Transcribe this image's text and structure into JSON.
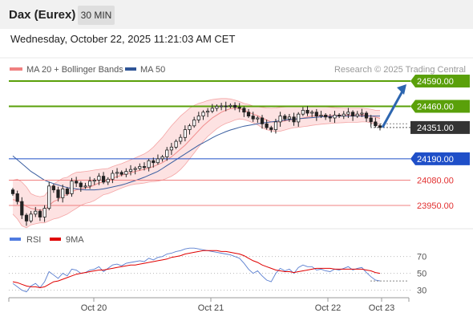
{
  "header": {
    "instrument": "Dax (Eurex)",
    "timeframe": "30 MIN",
    "datetime": "Wednesday, October 22, 2025 11:21:03 AM CET"
  },
  "colors": {
    "bollinger_fill": "#fde2e2",
    "bollinger_line": "#f4a6a6",
    "ma50": "#3b5fa0",
    "green_level": "#5aa00a",
    "blue_level": "#1f4fc8",
    "red_level": "#e23030",
    "last_price": "#333333",
    "rsi_line": "#5b7fd0",
    "rsi_ma": "#e00000",
    "arrow": "#2d66b0"
  },
  "chart_data": [
    {
      "type": "candlestick",
      "legend": [
        {
          "name": "MA 20 + Bollinger Bands",
          "color": "#f08080"
        },
        {
          "name": "MA 50",
          "color": "#2f5597"
        }
      ],
      "credit": "Research © 2025 Trading Central",
      "ylim": [
        23830,
        24615
      ],
      "levels": [
        {
          "value": 24590,
          "label": "24590.00",
          "kind": "resistance"
        },
        {
          "value": 24460,
          "label": "24460.00",
          "kind": "resistance"
        },
        {
          "value": 24351,
          "label": "24351.00",
          "kind": "last"
        },
        {
          "value": 24190,
          "label": "24190.00",
          "kind": "pivot"
        },
        {
          "value": 24080,
          "label": "24080.00",
          "kind": "support"
        },
        {
          "value": 23950,
          "label": "23950.00",
          "kind": "support"
        }
      ],
      "close": [
        24010,
        23970,
        23900,
        23870,
        23905,
        23920,
        23890,
        23935,
        24050,
        24030,
        23990,
        24035,
        24010,
        24075,
        24065,
        24045,
        24050,
        24075,
        24080,
        24100,
        24070,
        24085,
        24115,
        24120,
        24110,
        24125,
        24135,
        24140,
        24150,
        24145,
        24180,
        24170,
        24190,
        24200,
        24235,
        24250,
        24280,
        24300,
        24340,
        24360,
        24390,
        24410,
        24430,
        24435,
        24450,
        24460,
        24462,
        24460,
        24465,
        24455,
        24450,
        24430,
        24410,
        24395,
        24400,
        24370,
        24350,
        24340,
        24380,
        24410,
        24395,
        24405,
        24380,
        24420,
        24440,
        24425,
        24430,
        24410,
        24415,
        24405,
        24400,
        24415,
        24410,
        24420,
        24430,
        24410,
        24420,
        24425,
        24400,
        24380,
        24360,
        24351
      ],
      "ma20": [
        23980,
        23975,
        23960,
        23945,
        23935,
        23930,
        23925,
        23928,
        23950,
        23970,
        23980,
        24000,
        24005,
        24020,
        24030,
        24035,
        24040,
        24045,
        24055,
        24065,
        24072,
        24080,
        24090,
        24098,
        24105,
        24112,
        24118,
        24125,
        24130,
        24136,
        24142,
        24150,
        24160,
        24170,
        24185,
        24200,
        24220,
        24240,
        24260,
        24285,
        24310,
        24335,
        24360,
        24380,
        24400,
        24415,
        24430,
        24440,
        24448,
        24450,
        24448,
        24440,
        24430,
        24420,
        24412,
        24400,
        24390,
        24380,
        24378,
        24382,
        24385,
        24390,
        24392,
        24395,
        24400,
        24405,
        24410,
        24410,
        24412,
        24412,
        24412,
        24413,
        24413,
        24414,
        24415,
        24415,
        24415,
        24416,
        24414,
        24410,
        24405,
        24398
      ],
      "upper": [
        24080,
        24085,
        24070,
        24045,
        24010,
        24000,
        23995,
        24000,
        24030,
        24060,
        24075,
        24090,
        24095,
        24110,
        24120,
        24122,
        24125,
        24128,
        24132,
        24135,
        24138,
        24140,
        24150,
        24158,
        24165,
        24175,
        24185,
        24195,
        24205,
        24215,
        24230,
        24250,
        24275,
        24300,
        24330,
        24360,
        24385,
        24410,
        24430,
        24450,
        24465,
        24475,
        24482,
        24490,
        24495,
        24498,
        24500,
        24500,
        24498,
        24492,
        24485,
        24475,
        24470,
        24462,
        24458,
        24455,
        24452,
        24450,
        24452,
        24455,
        24457,
        24458,
        24458,
        24459,
        24460,
        24460,
        24460,
        24460,
        24460,
        24458,
        24455,
        24453,
        24452,
        24450,
        24450,
        24450,
        24450,
        24450,
        24448,
        24445,
        24440,
        24440
      ],
      "lower": [
        23905,
        23880,
        23845,
        23835,
        23850,
        23855,
        23860,
        23860,
        23870,
        23880,
        23885,
        23895,
        23905,
        23920,
        23935,
        23950,
        23960,
        23965,
        23975,
        23990,
        24005,
        24010,
        24020,
        24030,
        24040,
        24048,
        24055,
        24060,
        24062,
        24065,
        24070,
        24072,
        24075,
        24080,
        24090,
        24100,
        24115,
        24135,
        24160,
        24190,
        24220,
        24250,
        24280,
        24305,
        24325,
        24345,
        24360,
        24372,
        24380,
        24390,
        24395,
        24392,
        24385,
        24375,
        24365,
        24350,
        24340,
        24335,
        24330,
        24332,
        24338,
        24345,
        24350,
        24352,
        24355,
        24358,
        24362,
        24365,
        24368,
        24370,
        24372,
        24374,
        24375,
        24376,
        24378,
        24378,
        24378,
        24380,
        24380,
        24375,
        24368,
        24356
      ],
      "ma50": [
        24205,
        24185,
        24165,
        24145,
        24125,
        24110,
        24095,
        24080,
        24070,
        24062,
        24055,
        24048,
        24042,
        24038,
        24035,
        24032,
        24030,
        24030,
        24030,
        24032,
        24035,
        24040,
        24045,
        24050,
        24055,
        24062,
        24070,
        24078,
        24086,
        24095,
        24105,
        24115,
        24125,
        24140,
        24155,
        24170,
        24185,
        24200,
        24215,
        24230,
        24245,
        24260,
        24272,
        24285,
        24298,
        24310,
        24320,
        24330,
        24338,
        24345,
        24352,
        24358,
        24362,
        24366,
        24370,
        24374,
        24377,
        24380,
        24383,
        24386,
        24389,
        24392,
        24394,
        24396,
        24398,
        24400,
        24402,
        24404,
        24406,
        24407,
        24408,
        24409,
        24410,
        24410,
        24410,
        24410,
        24410,
        24410,
        24410,
        24410,
        24410,
        24410
      ],
      "x_ticks": [
        "Oct 20",
        "Oct 21",
        "Oct 22",
        "Oct 23"
      ]
    },
    {
      "type": "line",
      "legend": [
        {
          "name": "RSI",
          "color": "#4f7be0"
        },
        {
          "name": "9MA",
          "color": "#e00000"
        }
      ],
      "ylim": [
        22,
        84
      ],
      "y_ticks": [
        70,
        50,
        30
      ],
      "rsi": [
        38,
        34,
        30,
        28,
        35,
        38,
        33,
        40,
        52,
        48,
        44,
        50,
        47,
        55,
        54,
        50,
        51,
        54,
        55,
        58,
        52,
        56,
        60,
        61,
        59,
        62,
        63,
        64,
        65,
        64,
        68,
        66,
        69,
        70,
        73,
        74,
        76,
        77,
        79,
        80,
        80,
        79,
        78,
        77,
        76,
        75,
        74,
        73,
        72,
        70,
        68,
        62,
        55,
        50,
        53,
        47,
        42,
        40,
        50,
        56,
        53,
        55,
        50,
        57,
        60,
        58,
        58,
        54,
        55,
        53,
        52,
        55,
        54,
        56,
        58,
        54,
        56,
        57,
        51,
        46,
        42,
        41
      ],
      "rsi_ma": [
        40,
        39,
        37,
        35,
        34,
        34,
        33,
        34,
        37,
        40,
        41,
        43,
        45,
        47,
        49,
        50,
        51,
        52,
        53,
        54,
        54,
        55,
        56,
        57,
        58,
        59,
        60,
        60,
        61,
        62,
        63,
        64,
        65,
        66,
        67,
        69,
        70,
        71,
        73,
        74,
        75,
        76,
        77,
        77,
        77,
        77,
        76,
        76,
        75,
        74,
        73,
        71,
        68,
        65,
        63,
        60,
        58,
        56,
        54,
        53,
        52,
        52,
        51,
        52,
        53,
        54,
        55,
        56,
        56,
        56,
        56,
        55,
        55,
        55,
        55,
        55,
        55,
        55,
        54,
        53,
        51,
        50
      ]
    }
  ]
}
